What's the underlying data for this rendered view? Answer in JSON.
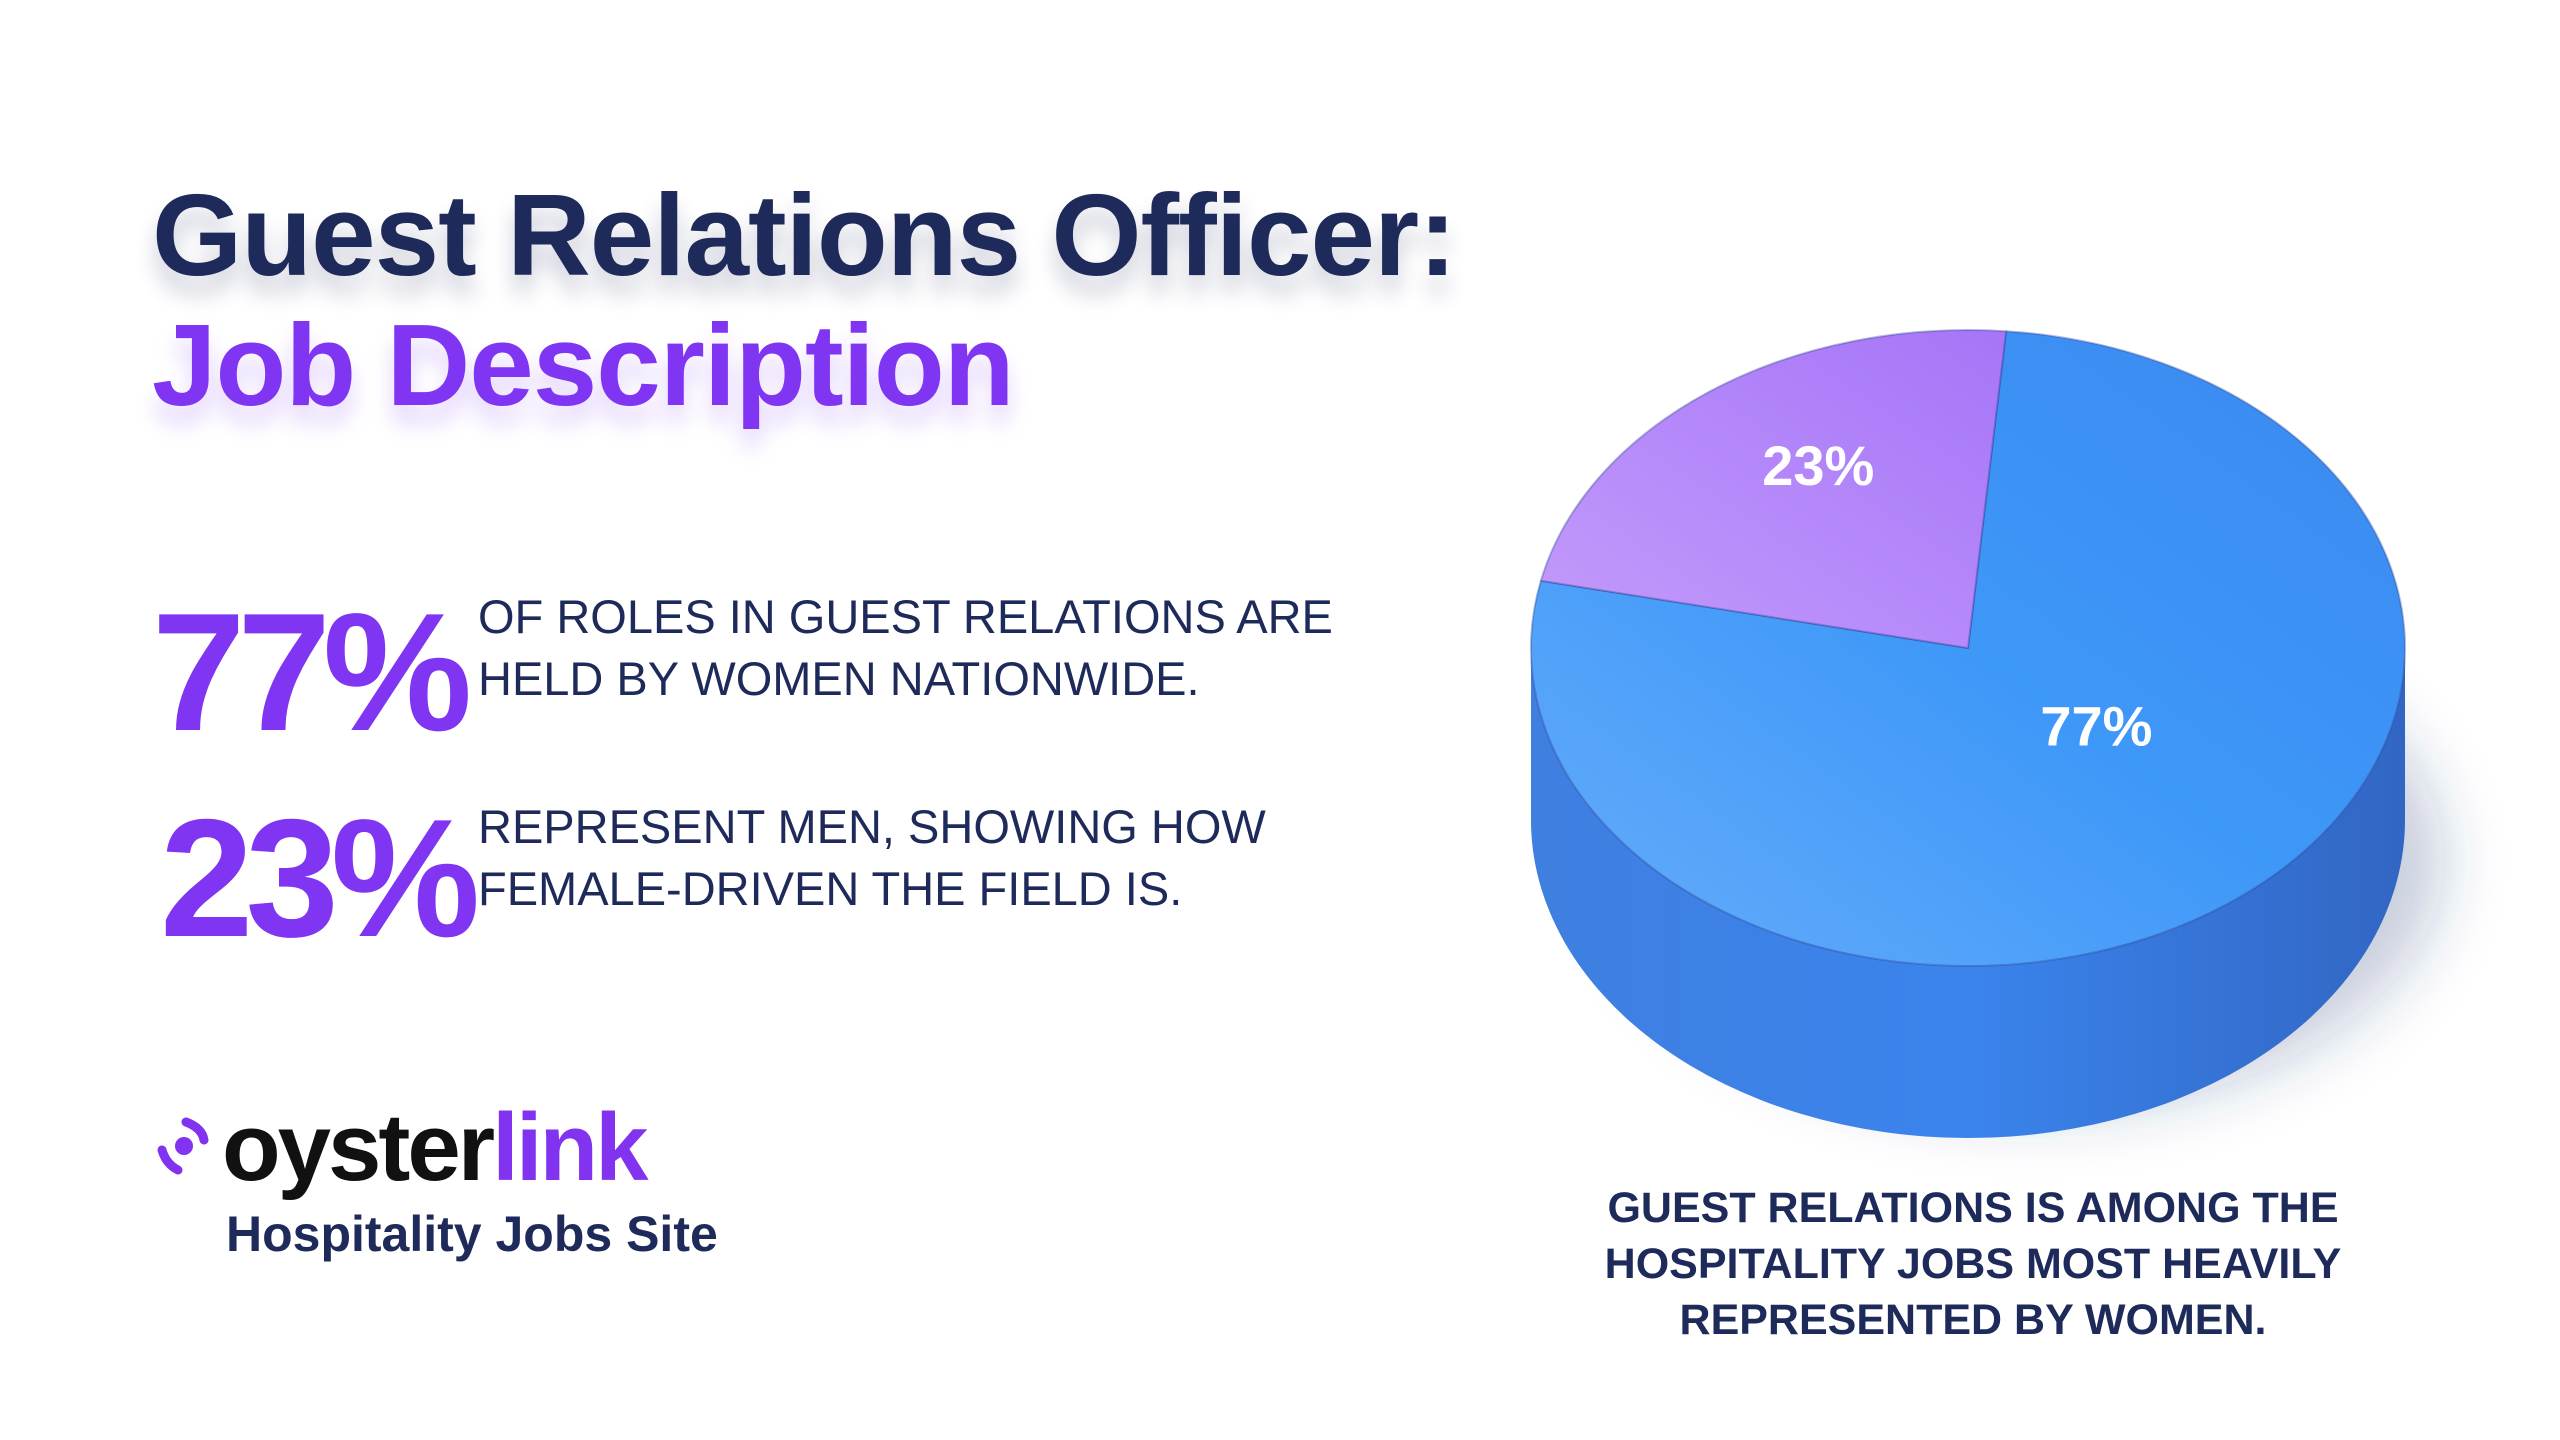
{
  "title": {
    "line1": "Guest Relations Officer:",
    "line2": "Job Description"
  },
  "stats": [
    {
      "value": "77%",
      "line1": "OF ROLES IN GUEST RELATIONS ARE",
      "line2": "HELD BY WOMEN NATIONWIDE."
    },
    {
      "value": "23%",
      "line1": "REPRESENT MEN, SHOWING HOW",
      "line2": "FEMALE-DRIVEN THE FIELD IS."
    }
  ],
  "logo": {
    "part1": "oyster",
    "part2": "link",
    "tagline": "Hospitality Jobs Site"
  },
  "caption": {
    "line1": "GUEST RELATIONS IS AMONG THE",
    "line2": "HOSPITALITY JOBS MOST HEAVILY",
    "line3": "REPRESENTED BY WOMEN."
  },
  "colors": {
    "navy": "#1e2a5a",
    "purple": "#7f35f2",
    "pie_blue": "#3d95f5",
    "pie_purple": "#b07cf9"
  },
  "chart_data": {
    "type": "pie",
    "slices": [
      {
        "label": "77%",
        "value": 77,
        "color": "#3d95f5"
      },
      {
        "label": "23%",
        "value": 23,
        "color": "#b07cf9"
      }
    ],
    "style": "3d"
  }
}
